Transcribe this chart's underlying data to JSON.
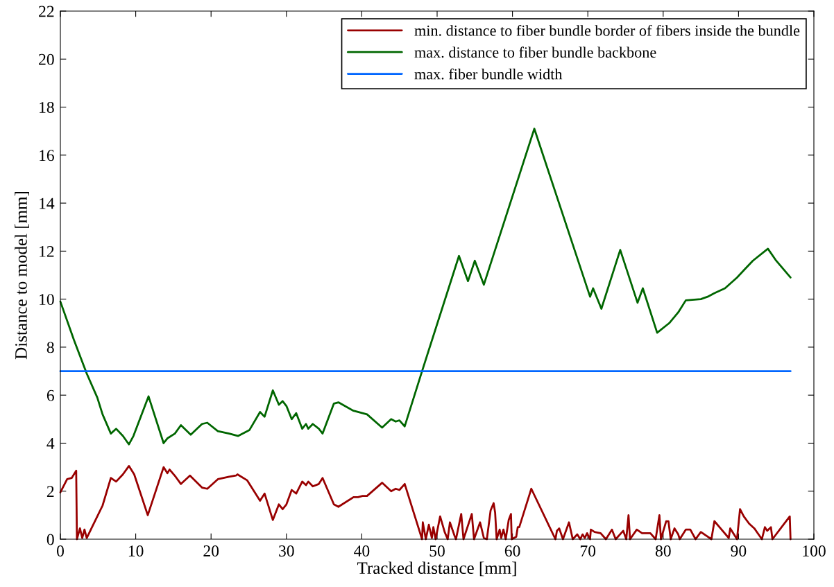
{
  "chart_data": {
    "type": "line",
    "xlabel": "Tracked distance [mm]",
    "ylabel": "Distance to model [mm]",
    "xlim": [
      0,
      100
    ],
    "xticks": [
      0,
      10,
      20,
      30,
      40,
      50,
      60,
      70,
      80,
      90,
      100
    ],
    "ylim": [
      0,
      22
    ],
    "yticks": [
      0,
      2,
      4,
      6,
      8,
      10,
      12,
      14,
      16,
      18,
      20,
      22
    ],
    "grid": false,
    "legend": "top right",
    "marker": "none",
    "line_style": "solid",
    "series": [
      {
        "name": "min. distance to fiber bundle border of fibers inside the bundle",
        "color": "#990000",
        "x": [
          0,
          0.9,
          1.5,
          2.1,
          2.2,
          2.6,
          2.9,
          3.2,
          3.5,
          4.9,
          5.6,
          6.7,
          7.4,
          8.3,
          9.1,
          9.8,
          11.6,
          13.7,
          14.2,
          14.5,
          15.3,
          16.0,
          17.2,
          18.8,
          19.5,
          20.9,
          22.4,
          23.3,
          23.5,
          24.8,
          26.5,
          27.1,
          28.2,
          29.0,
          29.5,
          30.0,
          30.7,
          31.3,
          32.1,
          32.6,
          32.9,
          33.5,
          34.3,
          34.8,
          36.3,
          36.9,
          38.9,
          39.5,
          40.1,
          40.7,
          42.7,
          43.9,
          44.5,
          45.0,
          45.7,
          48.0,
          48.1,
          48.5,
          48.9,
          49.3,
          49.5,
          49.8,
          50.4,
          51.0,
          51.4,
          51.7,
          52.3,
          52.5,
          53.2,
          53.5,
          54.6,
          54.9,
          55.7,
          56.2,
          56.6,
          57.1,
          57.5,
          57.7,
          57.9,
          58.3,
          58.5,
          58.8,
          59.1,
          59.5,
          59.8,
          59.9,
          60.5,
          60.7,
          60.9,
          62.5,
          65.7,
          65.9,
          66.2,
          66.7,
          67.5,
          68.0,
          68.6,
          69.0,
          69.3,
          69.6,
          69.9,
          70.3,
          70.4,
          70.9,
          71.7,
          72.4,
          73.2,
          73.7,
          74.7,
          75.1,
          75.4,
          75.6,
          76.5,
          77.2,
          78.3,
          79.0,
          79.5,
          79.7,
          80.4,
          80.7,
          81.0,
          81.5,
          82.0,
          82.2,
          83.0,
          83.6,
          84.3,
          85.0,
          86.4,
          86.8,
          88.7,
          88.9,
          89.8,
          90.2,
          90.7,
          91.4,
          92.1,
          93.1,
          93.5,
          93.8,
          94.3,
          94.5,
          96.8,
          96.9
        ],
        "values": [
          1.95,
          2.5,
          2.55,
          2.85,
          0,
          0.45,
          0.05,
          0.4,
          0.05,
          0.95,
          1.4,
          2.55,
          2.4,
          2.7,
          3.05,
          2.7,
          1.0,
          3.0,
          2.75,
          2.9,
          2.6,
          2.3,
          2.65,
          2.15,
          2.1,
          2.5,
          2.6,
          2.65,
          2.7,
          2.45,
          1.6,
          1.9,
          0.8,
          1.45,
          1.25,
          1.45,
          2.05,
          1.9,
          2.4,
          2.25,
          2.4,
          2.2,
          2.3,
          2.55,
          1.45,
          1.35,
          1.75,
          1.75,
          1.8,
          1.8,
          2.35,
          2.0,
          2.1,
          2.05,
          2.3,
          0,
          0.7,
          0,
          0.6,
          0.05,
          0.5,
          0,
          0.95,
          0.3,
          0,
          0.7,
          0.15,
          0,
          1.05,
          0,
          1.05,
          0,
          0.7,
          0.05,
          0,
          1.2,
          1.5,
          1.1,
          0,
          0.4,
          0.05,
          0.4,
          0,
          0.8,
          1.05,
          0,
          0.1,
          0.5,
          0.5,
          2.1,
          0,
          0.35,
          0.45,
          0,
          0.7,
          0,
          0.2,
          0,
          0.2,
          0.05,
          0.25,
          0,
          0.4,
          0.3,
          0.25,
          0,
          0.4,
          0,
          0.35,
          0,
          1.0,
          0,
          0.4,
          0.25,
          0.25,
          0,
          1.0,
          0,
          0.75,
          0.75,
          0,
          0.45,
          0.2,
          0,
          0.4,
          0.4,
          0,
          0.3,
          0,
          0.75,
          0.05,
          0.45,
          0,
          1.25,
          0.95,
          0.65,
          0.45,
          0,
          0.5,
          0.35,
          0.5,
          0,
          0.95,
          0
        ]
      },
      {
        "name": "max. distance to fiber bundle backbone",
        "color": "#006600",
        "x": [
          0,
          1.8,
          3.5,
          4.9,
          5.6,
          6.7,
          7.4,
          8.3,
          9.1,
          9.7,
          11.7,
          13.7,
          14.2,
          15.2,
          16.0,
          17.3,
          18.8,
          19.5,
          20.9,
          22.4,
          23.6,
          25.1,
          26.5,
          27.1,
          28.2,
          29.0,
          29.5,
          30.0,
          30.7,
          31.3,
          32.1,
          32.6,
          32.9,
          33.5,
          34.3,
          34.8,
          36.3,
          36.9,
          38.9,
          39.5,
          40.1,
          40.7,
          42.7,
          43.9,
          44.5,
          45.0,
          45.7,
          48.0,
          52.9,
          54.1,
          55.0,
          56.2,
          62.9,
          70.3,
          70.7,
          71.8,
          74.3,
          76.6,
          77.3,
          79.2,
          80.8,
          82.0,
          83.0,
          85.0,
          85.9,
          86.8,
          88.2,
          89.8,
          90.7,
          91.9,
          93.9,
          95.0,
          96.9
        ],
        "values": [
          9.9,
          8.3,
          6.9,
          5.9,
          5.2,
          4.4,
          4.6,
          4.3,
          3.95,
          4.3,
          5.95,
          4.0,
          4.2,
          4.4,
          4.75,
          4.35,
          4.8,
          4.85,
          4.5,
          4.4,
          4.3,
          4.55,
          5.3,
          5.1,
          6.2,
          5.6,
          5.75,
          5.55,
          5.0,
          5.25,
          4.6,
          4.8,
          4.6,
          4.8,
          4.6,
          4.4,
          5.65,
          5.7,
          5.35,
          5.3,
          5.25,
          5.2,
          4.65,
          5.0,
          4.9,
          4.95,
          4.7,
          7.0,
          11.8,
          10.75,
          11.6,
          10.6,
          17.1,
          10.1,
          10.45,
          9.6,
          12.05,
          9.85,
          10.45,
          8.6,
          9.0,
          9.45,
          9.95,
          10.0,
          10.1,
          10.25,
          10.45,
          10.9,
          11.2,
          11.6,
          12.1,
          11.6,
          10.9
        ]
      },
      {
        "name": "max. fiber bundle width",
        "color": "#0066ff",
        "x": [
          0,
          96.9
        ],
        "values": [
          7,
          7
        ]
      }
    ]
  }
}
